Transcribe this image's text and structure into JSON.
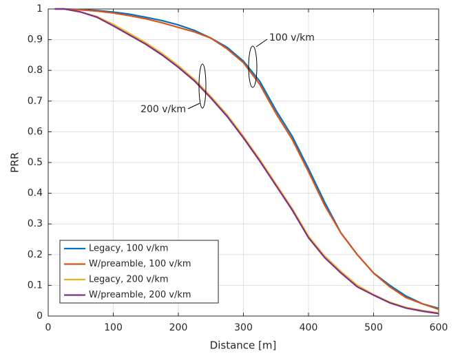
{
  "chart_data": {
    "type": "line",
    "xlabel": "Distance [m]",
    "ylabel": "PRR",
    "x": [
      10,
      25,
      50,
      75,
      100,
      125,
      150,
      175,
      200,
      225,
      250,
      275,
      300,
      325,
      350,
      375,
      400,
      425,
      450,
      475,
      500,
      525,
      550,
      575,
      600
    ],
    "series": [
      {
        "name": "Legacy, 100 v/km",
        "color": "#0072BD",
        "values": [
          1.0,
          1.0,
          0.998,
          0.995,
          0.99,
          0.983,
          0.973,
          0.962,
          0.948,
          0.93,
          0.905,
          0.875,
          0.83,
          0.765,
          0.67,
          0.585,
          0.48,
          0.37,
          0.27,
          0.2,
          0.14,
          0.1,
          0.065,
          0.04,
          0.025
        ]
      },
      {
        "name": "W/preamble, 100 v/km",
        "color": "#D95319",
        "values": [
          1.0,
          1.0,
          0.997,
          0.993,
          0.987,
          0.978,
          0.968,
          0.955,
          0.94,
          0.925,
          0.905,
          0.87,
          0.825,
          0.755,
          0.66,
          0.575,
          0.47,
          0.36,
          0.27,
          0.2,
          0.14,
          0.095,
          0.06,
          0.04,
          0.022
        ]
      },
      {
        "name": "Legacy, 200 v/km",
        "color": "#EDB120",
        "values": [
          1.0,
          1.0,
          0.99,
          0.975,
          0.95,
          0.92,
          0.89,
          0.855,
          0.815,
          0.77,
          0.715,
          0.655,
          0.585,
          0.51,
          0.43,
          0.35,
          0.26,
          0.195,
          0.145,
          0.1,
          0.07,
          0.045,
          0.028,
          0.018,
          0.01
        ]
      },
      {
        "name": "W/preamble, 200 v/km",
        "color": "#7E2F8E",
        "values": [
          1.0,
          1.0,
          0.99,
          0.973,
          0.945,
          0.915,
          0.885,
          0.85,
          0.81,
          0.765,
          0.71,
          0.65,
          0.58,
          0.505,
          0.425,
          0.345,
          0.255,
          0.19,
          0.14,
          0.095,
          0.068,
          0.043,
          0.026,
          0.016,
          0.008
        ]
      }
    ],
    "annotations": [
      "100 v/km",
      "200 v/km"
    ],
    "xlim": [
      0,
      600
    ],
    "xticks": [
      0,
      100,
      200,
      300,
      400,
      500,
      600
    ],
    "ylim": [
      0,
      1
    ],
    "yticks": [
      0,
      0.1,
      0.2,
      0.3,
      0.4,
      0.5,
      0.6,
      0.7,
      0.8,
      0.9,
      1
    ],
    "grid": true,
    "legend": "lower-left"
  }
}
